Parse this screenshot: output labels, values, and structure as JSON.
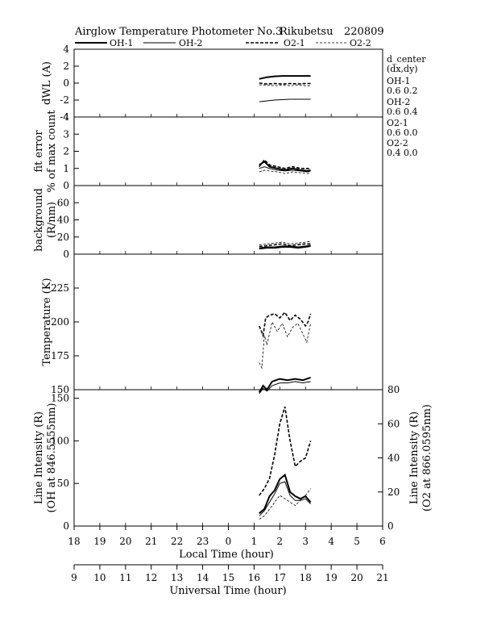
{
  "title": {
    "text": "Airglow Temperature Photometer No.3",
    "station": "Rikubetsu",
    "date": "220809"
  },
  "legend": [
    {
      "name": "OH-1",
      "dash": "solid",
      "width": 2.0
    },
    {
      "name": "OH-2",
      "dash": "solid",
      "width": 1.0
    },
    {
      "name": "O2-1",
      "dash": "4,2",
      "width": 1.6
    },
    {
      "name": "O2-2",
      "dash": "3,2",
      "width": 0.8
    }
  ],
  "side_info": {
    "header1": "d_center",
    "header2": "(dx,dy)",
    "entries": [
      {
        "name": "OH-1",
        "values": "0.6  0.2"
      },
      {
        "name": "OH-2",
        "values": "0.6  0.4"
      },
      {
        "name": "O2-1",
        "values": "0.6  0.0"
      },
      {
        "name": "O2-2",
        "values": "0.4  0.0"
      }
    ]
  },
  "xaxis": {
    "local_label": "Local Time (hour)",
    "local_ticks": [
      "18",
      "19",
      "20",
      "21",
      "22",
      "23",
      "0",
      "1",
      "2",
      "3",
      "4",
      "5",
      "6"
    ],
    "ut_label": "Universal Time (hour)",
    "ut_ticks": [
      "9",
      "10",
      "11",
      "12",
      "13",
      "14",
      "15",
      "16",
      "17",
      "18",
      "19",
      "20",
      "21"
    ]
  },
  "chart_data": {
    "type": "line",
    "x_unit": "Local Time (hour, 18=start, 30=6 next day)",
    "panels": [
      {
        "id": "dwl",
        "ylabel": [
          "dWL (A)"
        ],
        "ylim": [
          -4,
          4
        ],
        "yticks": [
          "4",
          "2",
          "0",
          "-2",
          "-4"
        ],
        "series": [
          {
            "name": "OH-1",
            "x": [
              25.2,
              25.5,
              25.8,
              26.1,
              26.4,
              26.7,
              27.0,
              27.2
            ],
            "y": [
              0.5,
              0.7,
              0.8,
              0.85,
              0.85,
              0.85,
              0.85,
              0.85
            ]
          },
          {
            "name": "OH-2",
            "x": [
              25.2,
              25.5,
              25.8,
              26.1,
              26.4,
              26.7,
              27.0,
              27.2
            ],
            "y": [
              -2.2,
              -2.1,
              -2.0,
              -1.95,
              -1.9,
              -1.9,
              -1.9,
              -1.9
            ]
          },
          {
            "name": "O2-1",
            "x": [
              25.2,
              25.5,
              25.8,
              26.1,
              26.4,
              26.7,
              27.0,
              27.2
            ],
            "y": [
              0.0,
              -0.1,
              -0.05,
              -0.1,
              -0.05,
              -0.1,
              -0.05,
              -0.05
            ]
          },
          {
            "name": "O2-2",
            "x": [
              25.2,
              25.5,
              25.8,
              26.1,
              26.4,
              26.7,
              27.0,
              27.2
            ],
            "y": [
              -0.2,
              -0.25,
              -0.3,
              -0.25,
              -0.3,
              -0.25,
              -0.3,
              -0.3
            ]
          }
        ]
      },
      {
        "id": "fiterr",
        "ylabel": [
          "fit error",
          "% of max count"
        ],
        "ylim": [
          0,
          4
        ],
        "yticks": [
          "4",
          "3",
          "2",
          "1",
          "0"
        ],
        "series": [
          {
            "name": "OH-1",
            "x": [
              25.2,
              25.4,
              25.6,
              25.9,
              26.2,
              26.5,
              26.8,
              27.1,
              27.2
            ],
            "y": [
              1.2,
              1.4,
              1.1,
              1.0,
              0.9,
              1.0,
              0.9,
              0.85,
              0.9
            ]
          },
          {
            "name": "OH-2",
            "x": [
              25.2,
              25.4,
              25.6,
              25.9,
              26.2,
              26.5,
              26.8,
              27.1,
              27.2
            ],
            "y": [
              1.0,
              1.1,
              1.0,
              0.9,
              0.85,
              0.9,
              0.85,
              0.8,
              0.85
            ]
          },
          {
            "name": "O2-1",
            "x": [
              25.2,
              25.4,
              25.6,
              25.9,
              26.2,
              26.5,
              26.8,
              27.1,
              27.2
            ],
            "y": [
              1.1,
              1.5,
              1.2,
              1.1,
              1.0,
              1.1,
              1.0,
              1.0,
              0.95
            ]
          },
          {
            "name": "O2-2",
            "x": [
              25.2,
              25.4,
              25.6,
              25.9,
              26.2,
              26.5,
              26.8,
              27.1,
              27.2
            ],
            "y": [
              0.8,
              0.9,
              0.85,
              0.8,
              0.7,
              0.8,
              0.75,
              0.7,
              0.75
            ]
          }
        ]
      },
      {
        "id": "background",
        "ylabel": [
          "background",
          "(R/nm)"
        ],
        "ylim": [
          0,
          80
        ],
        "yticks": [
          "60",
          "40",
          "20",
          "0"
        ],
        "series": [
          {
            "name": "OH-1",
            "x": [
              25.2,
              25.5,
              25.8,
              26.1,
              26.4,
              26.7,
              27.0,
              27.2
            ],
            "y": [
              7,
              8,
              8,
              9,
              9,
              8,
              9,
              10
            ]
          },
          {
            "name": "OH-2",
            "x": [
              25.2,
              25.5,
              25.8,
              26.1,
              26.4,
              26.7,
              27.0,
              27.2
            ],
            "y": [
              6,
              7,
              7,
              8,
              8,
              7,
              8,
              9
            ]
          },
          {
            "name": "O2-1",
            "x": [
              25.2,
              25.5,
              25.8,
              26.1,
              26.4,
              26.7,
              27.0,
              27.2
            ],
            "y": [
              9,
              10,
              11,
              12,
              10,
              11,
              12,
              12
            ]
          },
          {
            "name": "O2-2",
            "x": [
              25.2,
              25.5,
              25.8,
              26.1,
              26.4,
              26.7,
              27.0,
              27.2
            ],
            "y": [
              11,
              12,
              13,
              14,
              12,
              13,
              14,
              15
            ]
          }
        ]
      },
      {
        "id": "temperature",
        "ylabel": [
          "Temperature (K)"
        ],
        "ylim": [
          150,
          250
        ],
        "yticks": [
          "225",
          "200",
          "175",
          "150"
        ],
        "series": [
          {
            "name": "OH-1",
            "x": [
              25.2,
              25.35,
              25.5,
              25.7,
              26.0,
              26.3,
              26.6,
              26.9,
              27.2
            ],
            "y": [
              148,
              153,
              150,
              156,
              158,
              157,
              158,
              157,
              159
            ]
          },
          {
            "name": "OH-2",
            "x": [
              25.2,
              25.35,
              25.5,
              25.7,
              26.0,
              26.3,
              26.6,
              26.9,
              27.2
            ],
            "y": [
              147,
              151,
              149,
              153,
              155,
              155,
              156,
              155,
              156
            ]
          },
          {
            "name": "O2-1",
            "x": [
              25.2,
              25.35,
              25.45,
              25.6,
              25.8,
              26.0,
              26.2,
              26.4,
              26.6,
              26.8,
              27.0,
              27.1,
              27.2
            ],
            "y": [
              197,
              190,
              203,
              205,
              206,
              203,
              207,
              201,
              205,
              202,
              197,
              200,
              206
            ]
          },
          {
            "name": "O2-2",
            "x": [
              25.2,
              25.3,
              25.4,
              25.5,
              25.7,
              25.9,
              26.1,
              26.3,
              26.5,
              26.7,
              26.9,
              27.05,
              27.2
            ],
            "y": [
              170,
              166,
              190,
              183,
              200,
              193,
              199,
              189,
              196,
              199,
              191,
              185,
              199
            ]
          }
        ]
      },
      {
        "id": "intensity",
        "ylabel": [
          "Line Intensity (R)",
          "(OH at 846.5555nm)"
        ],
        "ylabel_right": [
          "Line Intensity (R)",
          "(O2 at 866.0595nm)"
        ],
        "ylim": [
          0,
          160
        ],
        "yticks": [
          "150",
          "100",
          "50",
          "0"
        ],
        "ylim_right": [
          0,
          80
        ],
        "yticks_right": [
          "80",
          "60",
          "40",
          "20",
          "0"
        ],
        "series": [
          {
            "name": "OH-1",
            "axis": "left",
            "x": [
              25.2,
              25.4,
              25.6,
              25.8,
              26.0,
              26.2,
              26.4,
              26.6,
              26.8,
              27.0,
              27.2
            ],
            "y": [
              15,
              20,
              35,
              42,
              55,
              60,
              40,
              35,
              32,
              35,
              28
            ]
          },
          {
            "name": "OH-2",
            "axis": "left",
            "x": [
              25.2,
              25.4,
              25.6,
              25.8,
              26.0,
              26.2,
              26.4,
              26.6,
              26.8,
              27.0,
              27.2
            ],
            "y": [
              12,
              18,
              28,
              38,
              50,
              52,
              36,
              30,
              30,
              32,
              26
            ]
          },
          {
            "name": "O2-1",
            "axis": "right",
            "x": [
              25.2,
              25.4,
              25.6,
              25.8,
              26.0,
              26.2,
              26.4,
              26.6,
              26.8,
              27.0,
              27.2
            ],
            "y": [
              18,
              22,
              28,
              42,
              60,
              70,
              50,
              35,
              38,
              40,
              50
            ]
          },
          {
            "name": "O2-2",
            "axis": "right",
            "x": [
              25.2,
              25.4,
              25.6,
              25.8,
              26.0,
              26.2,
              26.4,
              26.6,
              26.8,
              27.0,
              27.2
            ],
            "y": [
              4,
              6,
              10,
              14,
              18,
              16,
              14,
              12,
              15,
              18,
              22
            ]
          }
        ]
      }
    ]
  }
}
